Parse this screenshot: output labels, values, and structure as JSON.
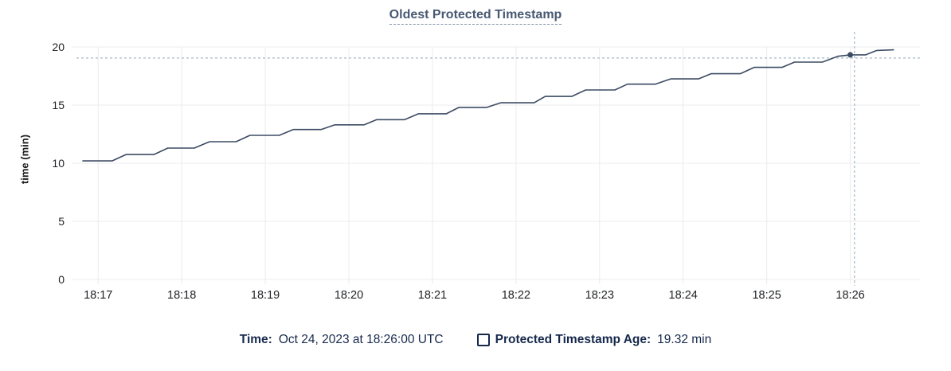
{
  "colors": {
    "line": "#3c4b63",
    "title": "#475872",
    "footer_text": "#16294c",
    "axis_text": "#1f2124",
    "grid": "#ececec",
    "crosshair": "#a3b7c7"
  },
  "footer": {
    "time_label": "Time:",
    "time_value": "Oct 24, 2023 at 18:26:00 UTC",
    "series_label": "Protected Timestamp Age:",
    "series_value": "19.32 min"
  },
  "chart_data": {
    "type": "line",
    "title": "Oldest Protected Timestamp",
    "xlabel": "",
    "ylabel": "time (min)",
    "ylim": [
      0,
      20
    ],
    "y_ticks": [
      0,
      5,
      10,
      15,
      20
    ],
    "x_ticks": [
      "18:17",
      "18:18",
      "18:19",
      "18:20",
      "18:21",
      "18:22",
      "18:23",
      "18:24",
      "18:25",
      "18:26"
    ],
    "x_domain": [
      "18:16:41",
      "18:26:50"
    ],
    "grid": true,
    "legend_position": "bottom",
    "series": [
      {
        "name": "Protected Timestamp Age",
        "unit": "min",
        "points": [
          [
            "18:16:49",
            10.2
          ],
          [
            "18:17:10",
            10.2
          ],
          [
            "18:17:20",
            10.75
          ],
          [
            "18:17:40",
            10.75
          ],
          [
            "18:17:50",
            11.3
          ],
          [
            "18:18:09",
            11.3
          ],
          [
            "18:18:20",
            11.85
          ],
          [
            "18:18:39",
            11.85
          ],
          [
            "18:18:49",
            12.4
          ],
          [
            "18:19:10",
            12.4
          ],
          [
            "18:19:20",
            12.9
          ],
          [
            "18:19:40",
            12.9
          ],
          [
            "18:19:50",
            13.3
          ],
          [
            "18:20:11",
            13.3
          ],
          [
            "18:20:20",
            13.75
          ],
          [
            "18:20:40",
            13.75
          ],
          [
            "18:20:50",
            14.25
          ],
          [
            "18:21:10",
            14.25
          ],
          [
            "18:21:19",
            14.8
          ],
          [
            "18:21:39",
            14.8
          ],
          [
            "18:21:49",
            15.2
          ],
          [
            "18:22:13",
            15.2
          ],
          [
            "18:22:21",
            15.75
          ],
          [
            "18:22:40",
            15.75
          ],
          [
            "18:22:50",
            16.3
          ],
          [
            "18:23:11",
            16.3
          ],
          [
            "18:23:20",
            16.8
          ],
          [
            "18:23:40",
            16.8
          ],
          [
            "18:23:51",
            17.25
          ],
          [
            "18:24:11",
            17.25
          ],
          [
            "18:24:20",
            17.7
          ],
          [
            "18:24:41",
            17.7
          ],
          [
            "18:24:51",
            18.25
          ],
          [
            "18:25:11",
            18.25
          ],
          [
            "18:25:20",
            18.7
          ],
          [
            "18:25:40",
            18.7
          ],
          [
            "18:25:51",
            19.2
          ],
          [
            "18:26:00",
            19.32
          ],
          [
            "18:26:11",
            19.32
          ],
          [
            "18:26:19",
            19.7
          ],
          [
            "18:26:31",
            19.75
          ]
        ]
      }
    ],
    "selected_point": {
      "time": "18:26:00",
      "value": 19.32
    },
    "crosshair": {
      "time": "18:26:03",
      "value": 19.05
    }
  }
}
